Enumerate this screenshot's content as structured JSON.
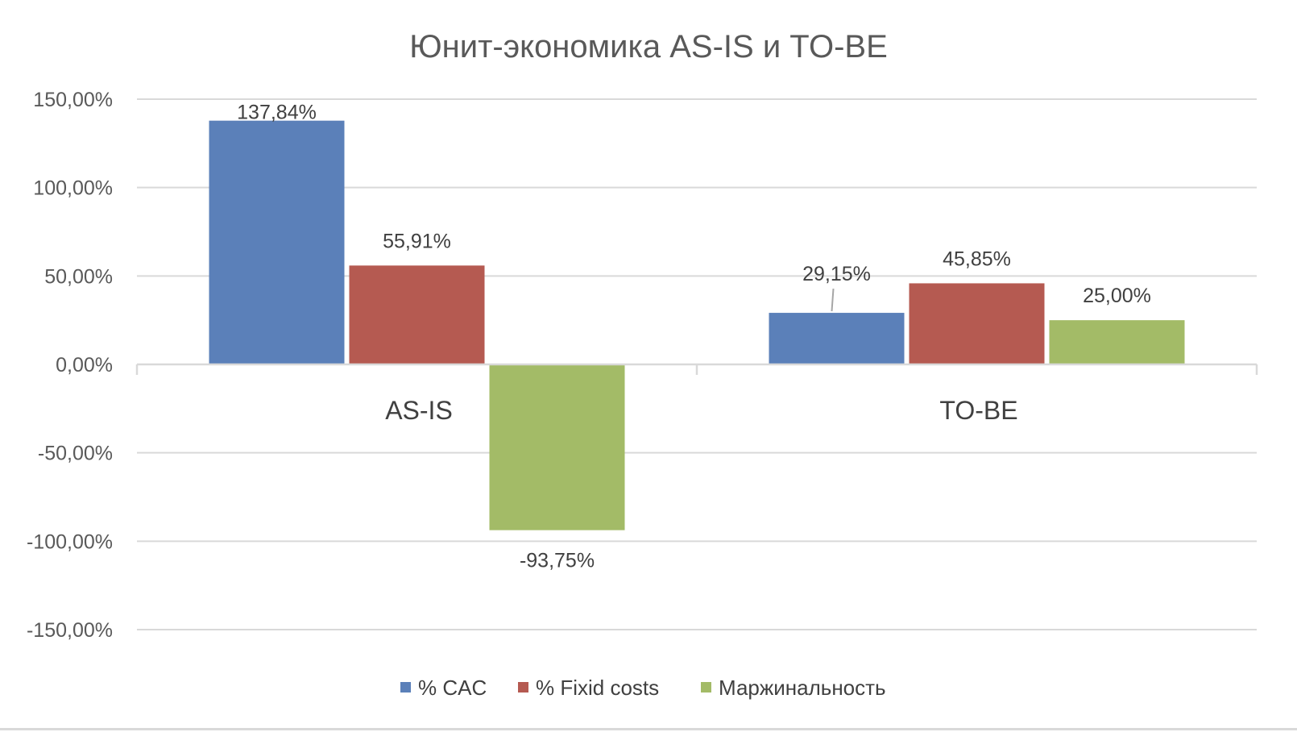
{
  "chart_data": {
    "type": "bar",
    "title": "Юнит-экономика AS-IS и TO-BE",
    "categories": [
      "AS-IS",
      "TO-BE"
    ],
    "series": [
      {
        "name": "% CAC",
        "color": "#5b80b9",
        "values": [
          137.84,
          29.15
        ],
        "labels": [
          "137,84%",
          "29,15%"
        ]
      },
      {
        "name": "% Fixid costs",
        "color": "#b55a51",
        "values": [
          55.91,
          45.85
        ],
        "labels": [
          "55,91%",
          "45,85%"
        ]
      },
      {
        "name": "Маржинальность",
        "color": "#a3bb67",
        "values": [
          -93.75,
          25.0
        ],
        "labels": [
          "-93,75%",
          "25,00%"
        ]
      }
    ],
    "ylim": [
      -150,
      150
    ],
    "yticks": [
      150,
      100,
      50,
      0,
      -50,
      -100,
      -150
    ],
    "ytick_labels": [
      "150,00%",
      "100,00%",
      "50,00%",
      "0,00%",
      "-50,00%",
      "-100,00%",
      "-150,00%"
    ],
    "grid": true,
    "legend_position": "bottom",
    "xlabel": "",
    "ylabel": ""
  }
}
